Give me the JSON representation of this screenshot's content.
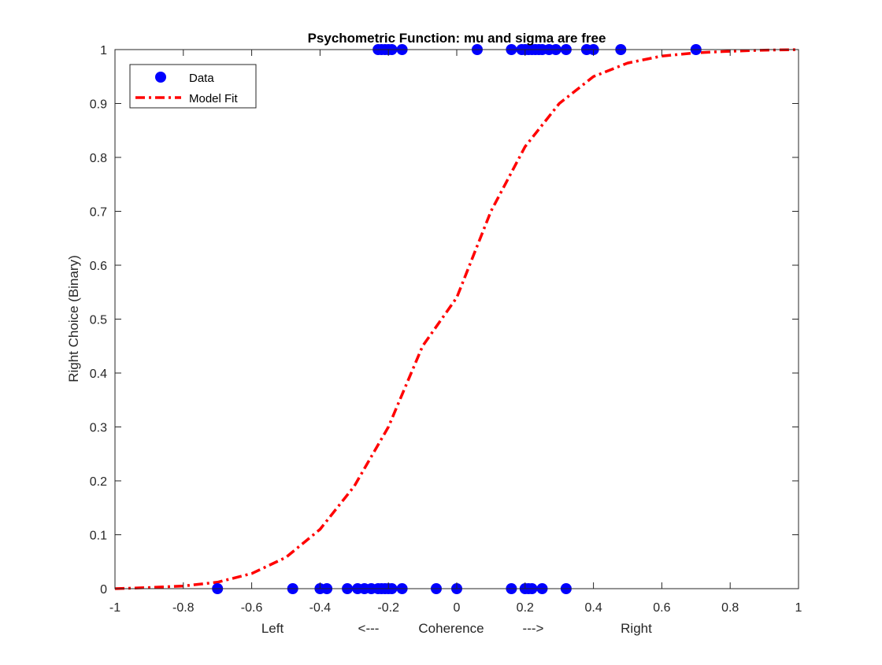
{
  "figure": {
    "background": "#ffffff"
  },
  "chart_data": {
    "type": "scatter",
    "title": "Psychometric Function: mu and sigma are free",
    "ylabel": "Right Choice (Binary)",
    "xlabel_parts": {
      "left": "Left",
      "left_arrow": "<---",
      "center": "Coherence",
      "right_arrow": "--->",
      "right": "Right"
    },
    "xlim": [
      -1,
      1
    ],
    "ylim": [
      0,
      1
    ],
    "x_ticks": [
      -1,
      -0.8,
      -0.6,
      -0.4,
      -0.2,
      0,
      0.2,
      0.4,
      0.6,
      0.8,
      1
    ],
    "x_tick_labels": [
      "-1",
      "-0.8",
      "-0.6",
      "-0.4",
      "-0.2",
      "0",
      "0.2",
      "0.4",
      "0.6",
      "0.8",
      "1"
    ],
    "y_ticks": [
      0,
      0.1,
      0.2,
      0.3,
      0.4,
      0.5,
      0.6,
      0.7,
      0.8,
      0.9,
      1
    ],
    "y_tick_labels": [
      "0",
      "0.1",
      "0.2",
      "0.3",
      "0.4",
      "0.5",
      "0.6",
      "0.7",
      "0.8",
      "0.9",
      "1"
    ],
    "grid": false,
    "legend_position": "top-left",
    "series": [
      {
        "name": "Data",
        "kind": "markers",
        "color": "#0000ff",
        "points": [
          {
            "x": -0.23,
            "y": 1
          },
          {
            "x": -0.22,
            "y": 1
          },
          {
            "x": -0.21,
            "y": 1
          },
          {
            "x": -0.2,
            "y": 1
          },
          {
            "x": -0.19,
            "y": 1
          },
          {
            "x": -0.16,
            "y": 1
          },
          {
            "x": 0.06,
            "y": 1
          },
          {
            "x": 0.16,
            "y": 1
          },
          {
            "x": 0.19,
            "y": 1
          },
          {
            "x": 0.2,
            "y": 1
          },
          {
            "x": 0.21,
            "y": 1
          },
          {
            "x": 0.22,
            "y": 1
          },
          {
            "x": 0.23,
            "y": 1
          },
          {
            "x": 0.24,
            "y": 1
          },
          {
            "x": 0.25,
            "y": 1
          },
          {
            "x": 0.27,
            "y": 1
          },
          {
            "x": 0.29,
            "y": 1
          },
          {
            "x": 0.32,
            "y": 1
          },
          {
            "x": 0.38,
            "y": 1
          },
          {
            "x": 0.4,
            "y": 1
          },
          {
            "x": 0.48,
            "y": 1
          },
          {
            "x": 0.7,
            "y": 1
          },
          {
            "x": -0.7,
            "y": 0
          },
          {
            "x": -0.48,
            "y": 0
          },
          {
            "x": -0.4,
            "y": 0
          },
          {
            "x": -0.38,
            "y": 0
          },
          {
            "x": -0.32,
            "y": 0
          },
          {
            "x": -0.29,
            "y": 0
          },
          {
            "x": -0.27,
            "y": 0
          },
          {
            "x": -0.25,
            "y": 0
          },
          {
            "x": -0.23,
            "y": 0
          },
          {
            "x": -0.22,
            "y": 0
          },
          {
            "x": -0.21,
            "y": 0
          },
          {
            "x": -0.2,
            "y": 0
          },
          {
            "x": -0.19,
            "y": 0
          },
          {
            "x": -0.16,
            "y": 0
          },
          {
            "x": -0.06,
            "y": 0
          },
          {
            "x": 0,
            "y": 0
          },
          {
            "x": 0.16,
            "y": 0
          },
          {
            "x": 0.2,
            "y": 0
          },
          {
            "x": 0.21,
            "y": 0
          },
          {
            "x": 0.22,
            "y": 0
          },
          {
            "x": 0.25,
            "y": 0
          },
          {
            "x": 0.32,
            "y": 0
          }
        ]
      },
      {
        "name": "Model Fit",
        "kind": "line",
        "line_style": "dash-dot",
        "color": "#ff0000",
        "points": [
          {
            "x": -1,
            "y": 0
          },
          {
            "x": -0.9,
            "y": 0.002
          },
          {
            "x": -0.8,
            "y": 0.005
          },
          {
            "x": -0.7,
            "y": 0.012
          },
          {
            "x": -0.6,
            "y": 0.028
          },
          {
            "x": -0.5,
            "y": 0.058
          },
          {
            "x": -0.4,
            "y": 0.11
          },
          {
            "x": -0.3,
            "y": 0.19
          },
          {
            "x": -0.2,
            "y": 0.3
          },
          {
            "x": -0.1,
            "y": 0.45
          },
          {
            "x": 0,
            "y": 0.54
          },
          {
            "x": 0.1,
            "y": 0.7
          },
          {
            "x": 0.2,
            "y": 0.82
          },
          {
            "x": 0.3,
            "y": 0.9
          },
          {
            "x": 0.4,
            "y": 0.95
          },
          {
            "x": 0.5,
            "y": 0.975
          },
          {
            "x": 0.6,
            "y": 0.988
          },
          {
            "x": 0.7,
            "y": 0.994
          },
          {
            "x": 0.8,
            "y": 0.997
          },
          {
            "x": 0.9,
            "y": 0.999
          },
          {
            "x": 1,
            "y": 1
          }
        ]
      }
    ]
  }
}
